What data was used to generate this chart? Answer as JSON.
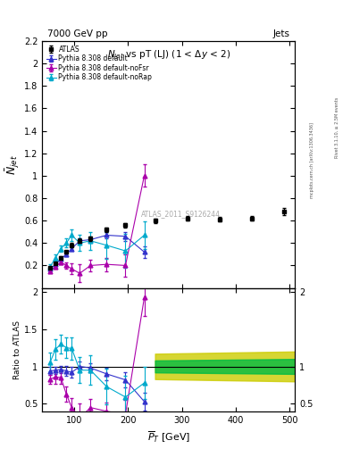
{
  "title_top": "7000 GeV pp",
  "title_top_right": "Jets",
  "title_main": "N$_{jet}$ vs pT (LJ) (1 < $\\Delta y$ < 2)",
  "xlabel": "$\\overline{P}_T$ [GeV]",
  "ylabel_main": "$\\overline{N}_{jet}$",
  "ylabel_ratio": "Ratio to ATLAS",
  "watermark": "ATLAS_2011_S9126244",
  "atlas_x": [
    55,
    65,
    75,
    85,
    95,
    110,
    130,
    160,
    195,
    250,
    310,
    370,
    430,
    490
  ],
  "atlas_y": [
    0.18,
    0.22,
    0.27,
    0.32,
    0.38,
    0.42,
    0.44,
    0.52,
    0.56,
    0.6,
    0.62,
    0.61,
    0.62,
    0.68
  ],
  "atlas_yerr": [
    0.01,
    0.01,
    0.01,
    0.01,
    0.02,
    0.02,
    0.02,
    0.02,
    0.02,
    0.02,
    0.02,
    0.02,
    0.02,
    0.03
  ],
  "blue_x": [
    55,
    65,
    75,
    85,
    95,
    110,
    130,
    160,
    195,
    230
  ],
  "blue_y": [
    0.17,
    0.21,
    0.26,
    0.3,
    0.35,
    0.42,
    0.43,
    0.47,
    0.46,
    0.32
  ],
  "blue_yerr": [
    0.01,
    0.01,
    0.01,
    0.02,
    0.02,
    0.02,
    0.02,
    0.03,
    0.04,
    0.05
  ],
  "purple_x": [
    55,
    65,
    75,
    85,
    95,
    110,
    130,
    160,
    195,
    230
  ],
  "purple_y": [
    0.15,
    0.19,
    0.23,
    0.2,
    0.17,
    0.13,
    0.2,
    0.21,
    0.2,
    1.0
  ],
  "purple_yerr": [
    0.01,
    0.02,
    0.02,
    0.03,
    0.05,
    0.08,
    0.05,
    0.06,
    0.1,
    0.1
  ],
  "cyan_x": [
    55,
    65,
    75,
    85,
    95,
    110,
    130,
    160,
    195,
    230
  ],
  "cyan_y": [
    0.19,
    0.27,
    0.35,
    0.4,
    0.47,
    0.4,
    0.42,
    0.38,
    0.33,
    0.47
  ],
  "cyan_yerr": [
    0.02,
    0.03,
    0.03,
    0.04,
    0.05,
    0.07,
    0.08,
    0.12,
    0.15,
    0.12
  ],
  "ratio_blue_x": [
    55,
    65,
    75,
    85,
    95,
    110,
    130,
    160,
    195,
    230
  ],
  "ratio_blue_y": [
    0.94,
    0.95,
    0.96,
    0.94,
    0.92,
    1.0,
    0.98,
    0.9,
    0.82,
    0.53
  ],
  "ratio_blue_yerr": [
    0.05,
    0.05,
    0.05,
    0.07,
    0.07,
    0.07,
    0.06,
    0.08,
    0.1,
    0.12
  ],
  "ratio_purple_x": [
    55,
    65,
    75,
    85,
    95,
    110,
    130,
    160,
    195,
    230
  ],
  "ratio_purple_y": [
    0.83,
    0.86,
    0.85,
    0.63,
    0.45,
    0.31,
    0.45,
    0.4,
    0.36,
    1.92
  ],
  "ratio_purple_yerr": [
    0.06,
    0.09,
    0.08,
    0.1,
    0.13,
    0.19,
    0.12,
    0.12,
    0.19,
    0.25
  ],
  "ratio_cyan_x": [
    55,
    65,
    75,
    85,
    95,
    110,
    130,
    160,
    195,
    230
  ],
  "ratio_cyan_y": [
    1.06,
    1.23,
    1.3,
    1.25,
    1.24,
    0.95,
    0.95,
    0.73,
    0.59,
    0.78
  ],
  "ratio_cyan_yerr": [
    0.12,
    0.14,
    0.13,
    0.14,
    0.15,
    0.17,
    0.2,
    0.24,
    0.28,
    0.22
  ],
  "blue_color": "#3333cc",
  "purple_color": "#aa00aa",
  "cyan_color": "#00aacc",
  "green_color": "#00bb44",
  "yellow_color": "#cccc00",
  "main_ylim": [
    0.0,
    2.2
  ],
  "ratio_ylim": [
    0.4,
    2.05
  ],
  "xlim": [
    40,
    510
  ]
}
